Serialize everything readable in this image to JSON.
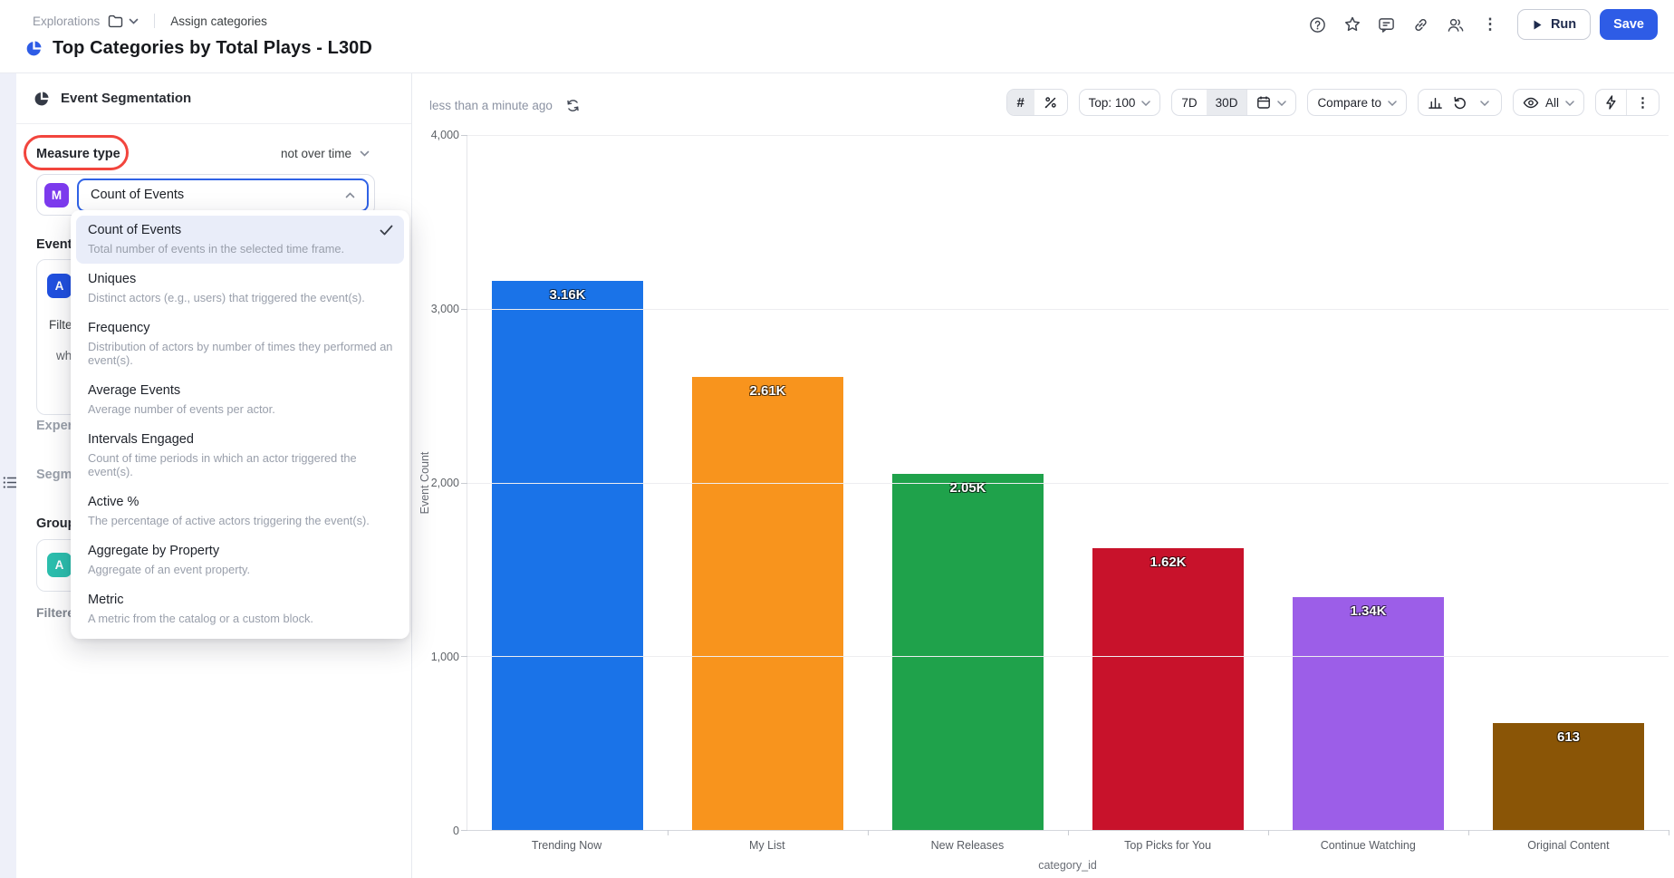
{
  "header": {
    "breadcrumb": {
      "root": "Explorations",
      "page": "Assign categories"
    },
    "title": "Top Categories by Total Plays - L30D",
    "run_label": "Run",
    "save_label": "Save"
  },
  "sidebar": {
    "panel_title": "Event Segmentation",
    "measure_type_label": "Measure type",
    "over_time_label": "not over time",
    "measure_badge": "M",
    "measure_value": "Count of Events",
    "event_label": "Event",
    "event_badge": "A",
    "filter_fragment": "Filte",
    "where_fragment": "whe",
    "experiment_fragment": "Exper",
    "segment_fragment": "Segm",
    "group_fragment": "Group",
    "group_badge": "A",
    "filtered_by_label": "Filtered By",
    "add_button": "+"
  },
  "measure_menu": {
    "items": [
      {
        "label": "Count of Events",
        "description": "Total number of events in the selected time frame.",
        "selected": true
      },
      {
        "label": "Uniques",
        "description": "Distinct actors (e.g., users) that triggered the event(s)."
      },
      {
        "label": "Frequency",
        "description": "Distribution of actors by number of times they performed an event(s)."
      },
      {
        "label": "Average Events",
        "description": "Average number of events per actor."
      },
      {
        "label": "Intervals Engaged",
        "description": "Count of time periods in which an actor triggered the event(s)."
      },
      {
        "label": "Active %",
        "description": "The percentage of active actors triggering the event(s)."
      },
      {
        "label": "Aggregate by Property",
        "description": "Aggregate of an event property."
      },
      {
        "label": "Metric",
        "description": "A metric from the catalog or a custom block."
      }
    ]
  },
  "toolbar": {
    "last_run": "less than a minute ago",
    "top_label": "Top: 100",
    "range_7d": "7D",
    "range_30d": "30D",
    "compare_label": "Compare to",
    "visibility_label": "All"
  },
  "icons": {
    "kebab": "⋮",
    "hash": "#",
    "plus": "+"
  },
  "colors": {
    "accent": "#2e5ce6",
    "annotation": "#f2453d",
    "measure_badge": "#7c3aed",
    "event_badge": "#2050e0",
    "group_badge": "#2cbfae"
  },
  "chart_data": {
    "type": "bar",
    "title": "",
    "xlabel": "category_id",
    "ylabel": "Event Count",
    "categories": [
      "Trending Now",
      "My List",
      "New Releases",
      "Top Picks for You",
      "Continue Watching",
      "Original Content"
    ],
    "values": [
      3160,
      2610,
      2050,
      1620,
      1340,
      613
    ],
    "value_labels": [
      "3.16K",
      "2.61K",
      "2.05K",
      "1.62K",
      "1.34K",
      "613"
    ],
    "colors": [
      "#1a73e8",
      "#f8941d",
      "#1fa24b",
      "#c8122b",
      "#9c5ee8",
      "#8a5506"
    ],
    "ylim": [
      0,
      4000
    ],
    "yticks": [
      0,
      1000,
      2000,
      3000,
      4000
    ],
    "ytick_labels": [
      "0",
      "1,000",
      "2,000",
      "3,000",
      "4,000"
    ],
    "grid": true,
    "legend": false
  }
}
